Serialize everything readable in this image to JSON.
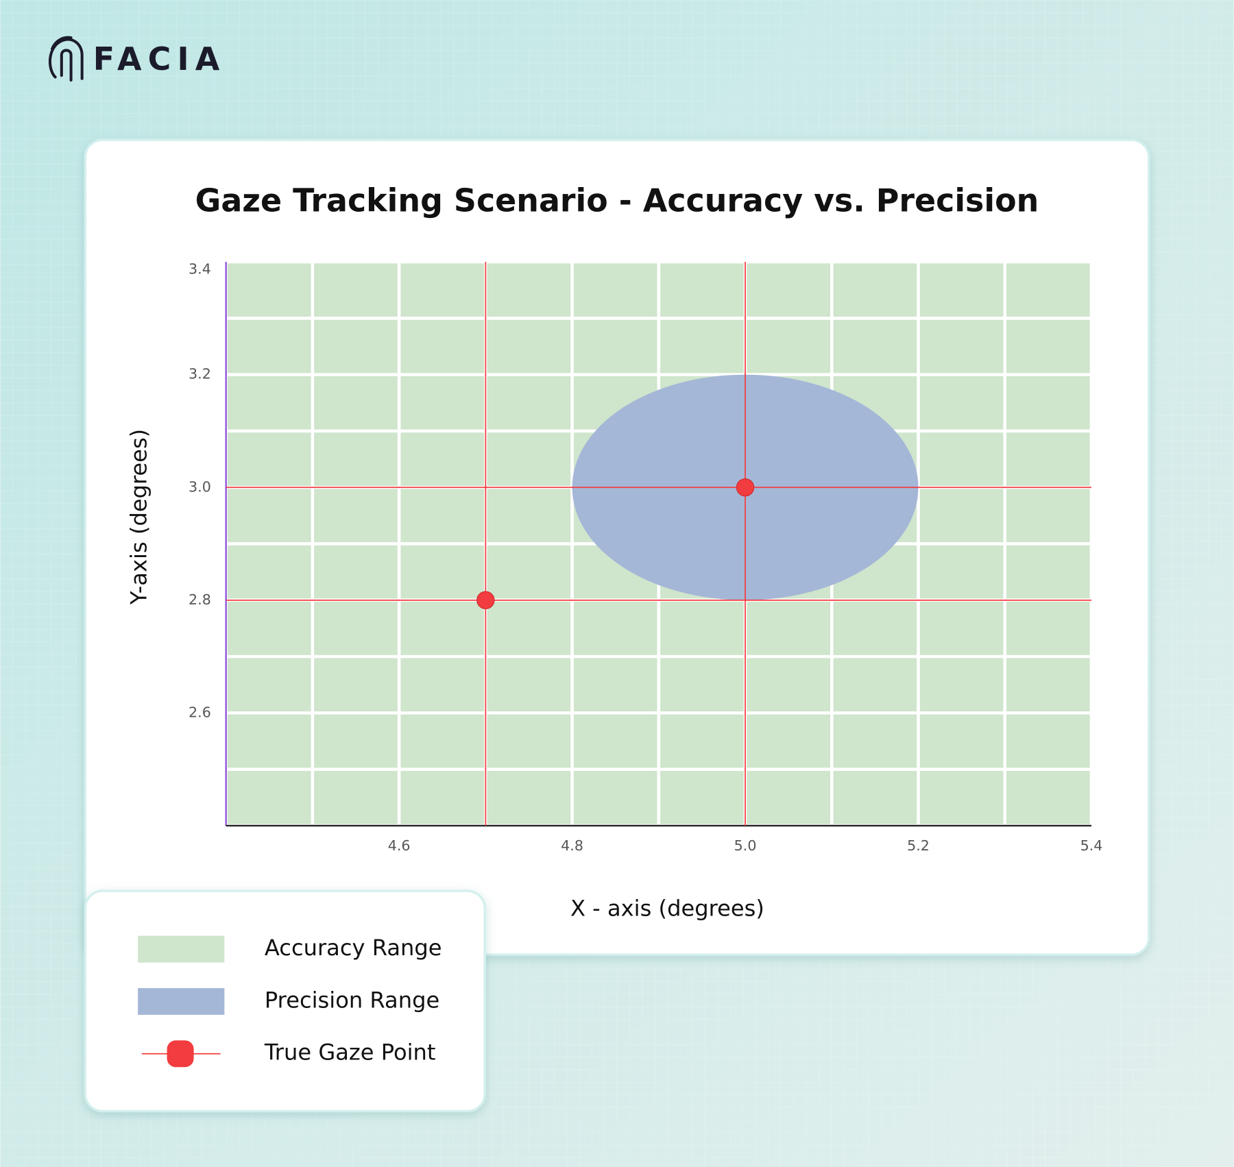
{
  "logo": "FACIA",
  "chart_data": {
    "type": "scatter",
    "title": "Gaze Tracking Scenario - Accuracy vs. Precision",
    "xlabel": "X - axis (degrees)",
    "ylabel": "Y-axis (degrees)",
    "xlim": [
      4.4,
      5.4
    ],
    "ylim": [
      2.4,
      3.4
    ],
    "xticks": [
      4.6,
      4.8,
      {
        "value": 5,
        "label": "5.0"
      },
      5.2,
      5.4
    ],
    "yticks": [
      2.6,
      2.8,
      {
        "value": 3,
        "label": "3.0"
      },
      3.2,
      3.4
    ],
    "xgrid": [
      4.4,
      4.5,
      4.6,
      4.7,
      4.8,
      4.9,
      5.0,
      5.1,
      5.2,
      5.3,
      5.4
    ],
    "ygrid": [
      2.4,
      2.5,
      2.6,
      2.7,
      2.8,
      2.9,
      3.0,
      3.1,
      3.2,
      3.3,
      3.4
    ],
    "grid": true,
    "crosshairs": true,
    "legend": "bottom-left",
    "series": [
      {
        "name": "Accuracy Range",
        "kind": "region",
        "color": "#cfe5cc",
        "x_range": [
          4.4,
          5.4
        ],
        "y_range": [
          2.4,
          3.4
        ]
      },
      {
        "name": "Precision Range",
        "kind": "ellipse",
        "color": "#a5b7d7",
        "center": [
          5.0,
          3.0
        ],
        "radius": [
          0.2,
          0.2
        ]
      },
      {
        "name": "True Gaze Point",
        "kind": "points",
        "color": "#f23c3f",
        "x": [
          4.7,
          5.0
        ],
        "y": [
          2.8,
          3.0
        ]
      }
    ]
  }
}
